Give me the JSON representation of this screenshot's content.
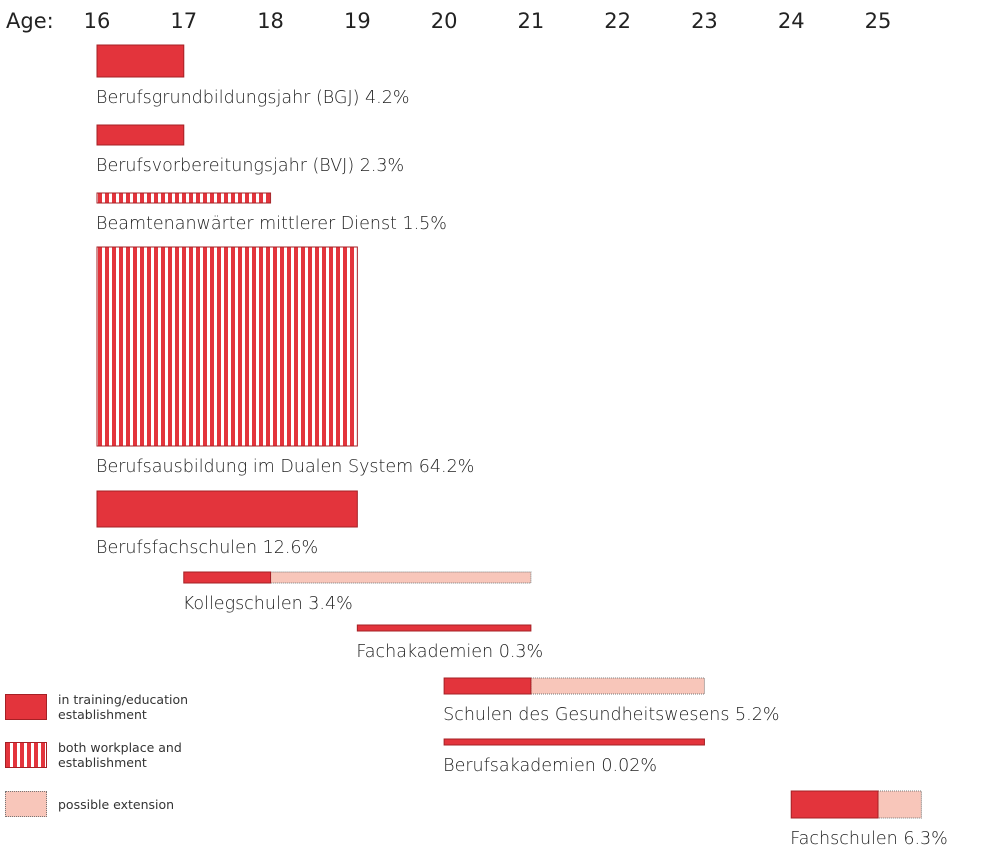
{
  "axis": {
    "label": "Age:",
    "ticks": [
      16,
      17,
      18,
      19,
      20,
      21,
      22,
      23,
      24,
      25
    ]
  },
  "programs": [
    {
      "label": "Berufsgrundbildungsjahr (BGJ) 4.2%",
      "start": 16,
      "end": 17,
      "style": "establishment"
    },
    {
      "label": "Berufsvorbereitungsjahr (BVJ) 2.3%",
      "start": 16,
      "end": 17,
      "style": "establishment"
    },
    {
      "label": "Beamtenanwärter mittlerer Dienst 1.5%",
      "start": 16,
      "end": 18,
      "style": "both"
    },
    {
      "label": "Berufsausbildung im Dualen System 64.2%",
      "start": 16,
      "end": 19,
      "style": "both"
    },
    {
      "label": "Berufsfachschulen 12.6%",
      "start": 16,
      "end": 19,
      "style": "establishment"
    },
    {
      "label": "Kollegschulen 3.4%",
      "start": 17,
      "end": 18,
      "extension_end": 21,
      "style": "establishment"
    },
    {
      "label": "Fachakademien 0.3%",
      "start": 19,
      "end": 21,
      "style": "establishment"
    },
    {
      "label": "Schulen des Gesundheitswesens 5.2%",
      "start": 20,
      "end": 21,
      "extension_end": 23,
      "style": "establishment"
    },
    {
      "label": "Berufsakademien 0.02%",
      "start": 20,
      "end": 23,
      "style": "establishment"
    },
    {
      "label": "Fachschulen 6.3%",
      "start": 24,
      "end": 25,
      "extension_end": 25.5,
      "style": "establishment"
    }
  ],
  "legend": [
    {
      "style": "establishment",
      "label": "in training/education establishment"
    },
    {
      "style": "both",
      "label": "both workplace and establishment"
    },
    {
      "style": "extension",
      "label": "possible extension"
    }
  ]
}
